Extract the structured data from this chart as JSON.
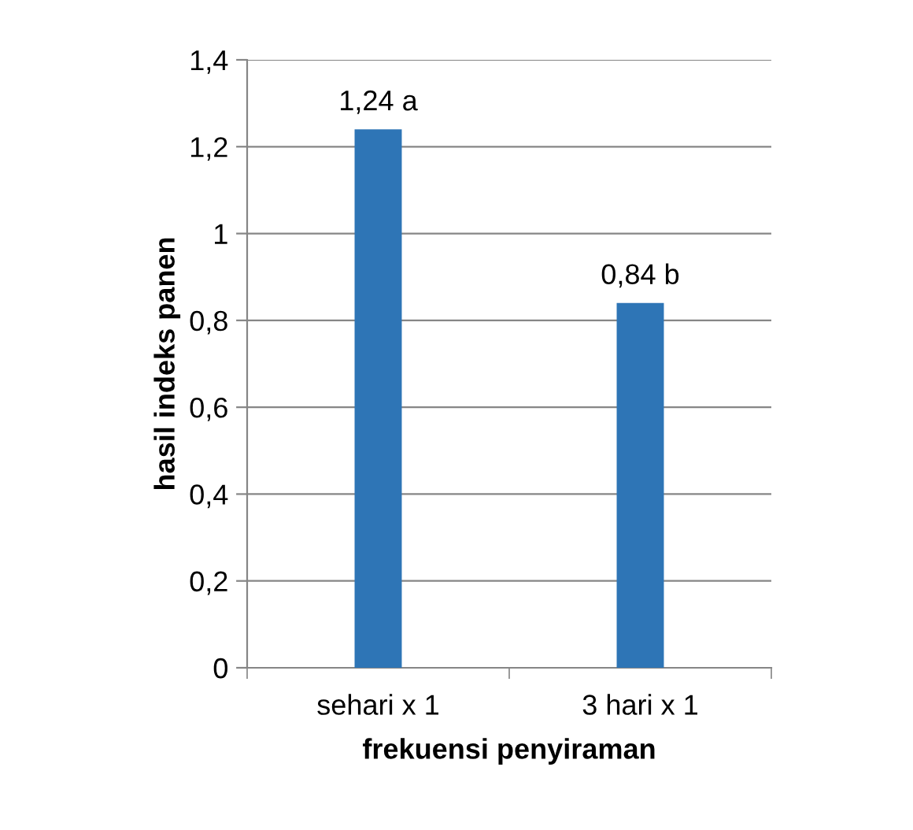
{
  "chart_data": {
    "type": "bar",
    "xlabel": "frekuensi penyiraman",
    "ylabel": "hasil indeks panen",
    "categories": [
      "sehari x 1",
      "3 hari x 1"
    ],
    "values": [
      1.24,
      0.84
    ],
    "color": "#2e75b6",
    "value_labels": [
      "1,24 a",
      "0,84 b"
    ],
    "ylim": [
      0,
      1.4
    ],
    "yticks": [
      0,
      {
        "value": 0.2,
        "label": "0,2"
      },
      {
        "value": 0.4,
        "label": "0,4"
      },
      {
        "value": 0.6,
        "label": "0,6"
      },
      {
        "value": 0.8,
        "label": "0,8"
      },
      1,
      {
        "value": 1.2,
        "label": "1,2"
      },
      {
        "value": 1.4,
        "label": "1,4"
      }
    ],
    "grid": "y",
    "legend": false
  }
}
